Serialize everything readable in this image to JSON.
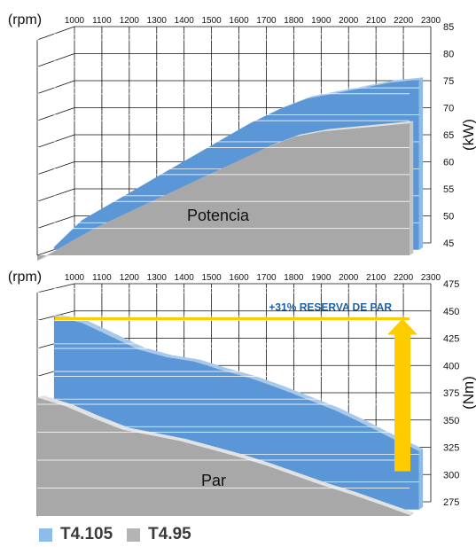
{
  "legend": [
    {
      "label": "T4.105",
      "color": "#8fbbe8"
    },
    {
      "label": "T4.95",
      "color": "#b4b4b4"
    }
  ],
  "colors": {
    "t4105_top": "#a9c9ec",
    "t4105_front": "#5b97d6",
    "t4105_side": "#8fbbe8",
    "t495_top": "#e2e2e2",
    "t495_front": "#a8a8a8",
    "t495_side": "#c4c4c4",
    "grid": "#111111",
    "reserve_arrow": "#ffcc00",
    "reserve_text": "#1f5fa8"
  },
  "chart_data": [
    {
      "type": "area",
      "xlabel": "(rpm)",
      "x": [
        1000,
        1100,
        1200,
        1300,
        1400,
        1500,
        1600,
        1700,
        1800,
        1900,
        2000,
        2100,
        2200,
        2300
      ],
      "ylabel": "(kW)",
      "yticks": [
        45,
        50,
        55,
        60,
        65,
        70,
        75,
        80,
        85
      ],
      "ylim": [
        45,
        85
      ],
      "inner_label": "Potencia",
      "series": [
        {
          "name": "T4.105",
          "values": [
            45.5,
            50.5,
            53.5,
            56.5,
            59.5,
            62.5,
            65.5,
            68.5,
            71,
            73,
            74,
            75,
            76,
            76.5
          ]
        },
        {
          "name": "T4.95",
          "values": [
            44,
            47,
            50,
            52.5,
            55,
            57.5,
            60,
            62.5,
            65,
            67,
            68,
            68.5,
            69,
            69.5
          ]
        }
      ]
    },
    {
      "type": "area",
      "xlabel": "(rpm)",
      "x": [
        1000,
        1100,
        1200,
        1300,
        1400,
        1500,
        1600,
        1700,
        1800,
        1900,
        2000,
        2100,
        2200,
        2300
      ],
      "ylabel": "(Nm)",
      "yticks": [
        275,
        300,
        325,
        350,
        375,
        400,
        425,
        450,
        475
      ],
      "ylim": [
        275,
        475
      ],
      "inner_label": "Par",
      "annotation": "+31% RESERVA DE PAR",
      "reserve_from": 315,
      "reserve_to": 450,
      "series": [
        {
          "name": "T4.105",
          "values": [
            450,
            444,
            432,
            420,
            413,
            409,
            401,
            394,
            385,
            375,
            365,
            353,
            340,
            328
          ]
        },
        {
          "name": "T4.95",
          "values": [
            381,
            373,
            362,
            352,
            347,
            342,
            335,
            328,
            320,
            311,
            302,
            294,
            285,
            276
          ]
        }
      ]
    }
  ]
}
